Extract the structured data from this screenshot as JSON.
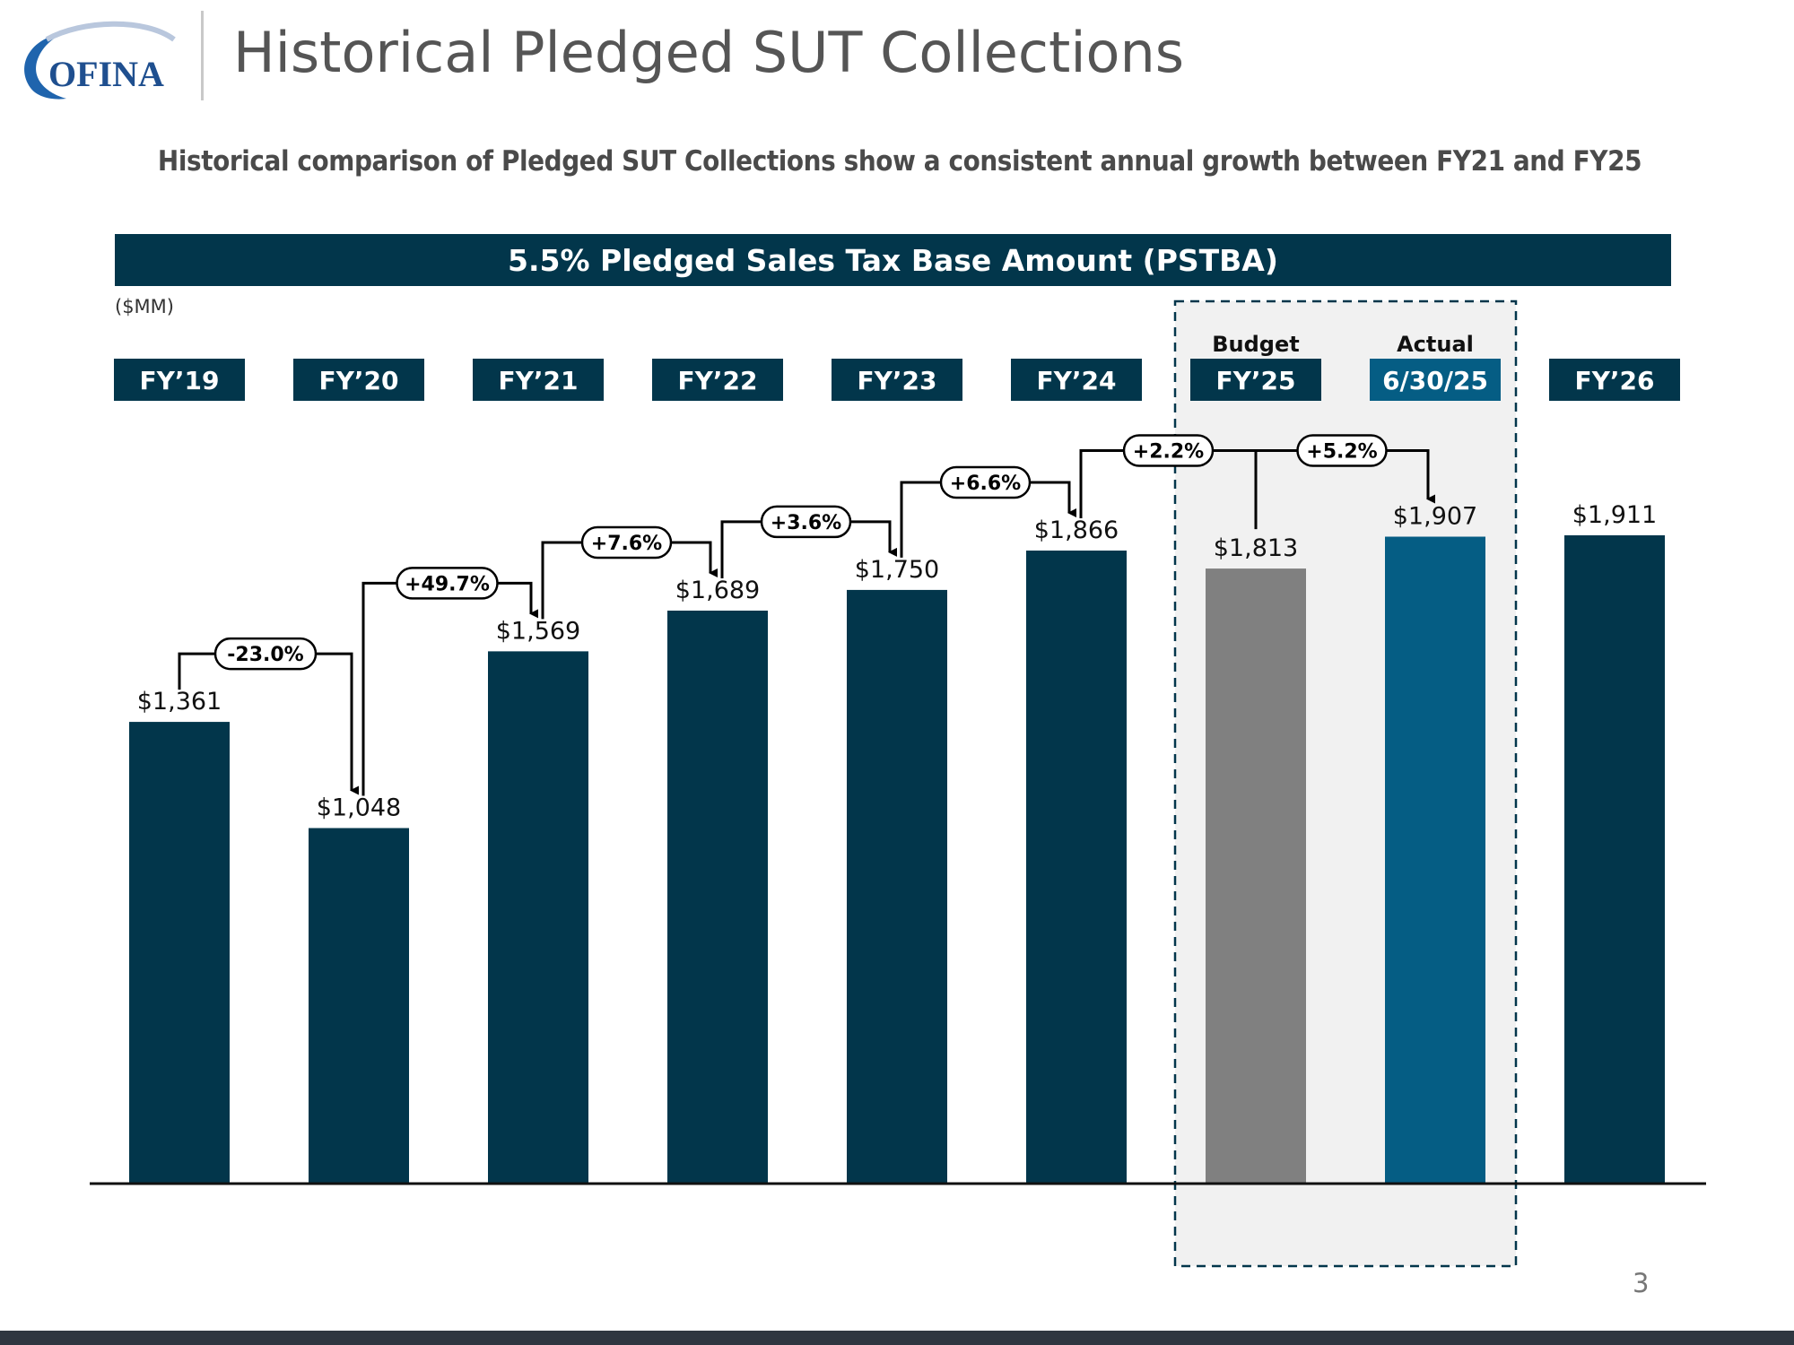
{
  "header": {
    "logo_text": "OFINA",
    "title": "Historical Pledged SUT Collections",
    "subtitle": "Historical comparison of Pledged SUT Collections show a consistent annual growth between FY21 and FY25",
    "banner": "5.5% Pledged Sales Tax Base Amount (PSTBA)",
    "units": "($MM)"
  },
  "page_number": "3",
  "colors": {
    "navy": "#02364b",
    "gray": "#808080",
    "teal": "#055d84",
    "highlight_bg": "#f1f1f1"
  },
  "chart_data": {
    "type": "bar",
    "title": "5.5% Pledged Sales Tax Base Amount (PSTBA)",
    "ylabel": "($MM)",
    "ylim": [
      0,
      2100
    ],
    "categories": [
      "FY’19",
      "FY’20",
      "FY’21",
      "FY’22",
      "FY’23",
      "FY’24",
      "FY’25",
      "6/30/25",
      "FY’26"
    ],
    "values": [
      1361,
      1048,
      1569,
      1689,
      1750,
      1866,
      1813,
      1907,
      1911
    ],
    "value_labels": [
      "$1,361",
      "$1,048",
      "$1,569",
      "$1,689",
      "$1,750",
      "$1,866",
      "$1,813",
      "$1,907",
      "$1,911"
    ],
    "bar_colors": [
      "navy",
      "navy",
      "navy",
      "navy",
      "navy",
      "navy",
      "gray",
      "teal",
      "navy"
    ],
    "category_box_colors": [
      "navy",
      "navy",
      "navy",
      "navy",
      "navy",
      "navy",
      "navy",
      "teal",
      "navy"
    ],
    "highlight": {
      "from_index": 6,
      "to_index": 7,
      "labels": [
        {
          "index": 6,
          "text": "Budget"
        },
        {
          "index": 7,
          "text": "Actual"
        }
      ]
    },
    "growth_annotations": [
      {
        "from": 0,
        "to": 1,
        "label": "-23.0%"
      },
      {
        "from": 1,
        "to": 2,
        "label": "+49.7%"
      },
      {
        "from": 2,
        "to": 3,
        "label": "+7.6%"
      },
      {
        "from": 3,
        "to": 4,
        "label": "+3.6%"
      },
      {
        "from": 4,
        "to": 5,
        "label": "+6.6%"
      },
      {
        "from": 5,
        "to": 7,
        "label": "+2.2%",
        "branch": "+5.2%",
        "branch_index": 6
      }
    ]
  }
}
